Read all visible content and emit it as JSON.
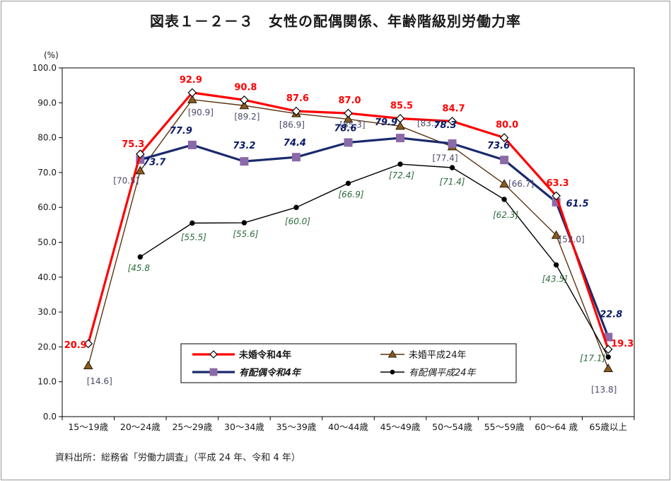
{
  "title": "図表１－２－３　女性の配偶関係、年齢階級別労働力率",
  "source": "資料出所：総務省「労働力調査」（平成 24 年、令和 4 年）",
  "colors": {
    "unmarried_r4": "#ff0000",
    "unmarried_h24": "#5a3310",
    "married_r4": "#1a2a6c",
    "married_h24": "#000000",
    "married_r4_marker": "#8b6aa8",
    "label_unmarried_h24": "#4a4a6a",
    "label_married_r4": "#0a1a66",
    "label_married_h24": "#2a6a3a"
  },
  "chart_data": {
    "type": "line",
    "ylabel": "(%)",
    "ylim": [
      0,
      100
    ],
    "yticks": [
      "0.0",
      "10.0",
      "20.0",
      "30.0",
      "40.0",
      "50.0",
      "60.0",
      "70.0",
      "80.0",
      "90.0",
      "100.0"
    ],
    "grid": false,
    "legend_position": "bottom-center (inside plot)",
    "categories": [
      "15～19歳",
      "20～24歳",
      "25～29歳",
      "30～34歳",
      "35～39歳",
      "40～44歳",
      "45～49歳",
      "50～54歳",
      "55～59歳",
      "60～64 歳",
      "65歳以上"
    ],
    "series": [
      {
        "name": "未婚令和4年",
        "marker": "diamond-open",
        "values": [
          20.9,
          75.3,
          92.9,
          90.8,
          87.6,
          87.0,
          85.5,
          84.7,
          80.0,
          63.3,
          19.3
        ],
        "labels": [
          "20.9",
          "75.3",
          "92.9",
          "90.8",
          "87.6",
          "87.0",
          "85.5",
          "84.7",
          "80.0",
          "63.3",
          "19.3"
        ]
      },
      {
        "name": "未婚平成24年",
        "marker": "triangle",
        "values": [
          14.6,
          70.5,
          90.9,
          89.2,
          86.9,
          85.3,
          83.3,
          77.4,
          66.7,
          52.0,
          13.8
        ],
        "labels": [
          "[14.6]",
          "[70.5]",
          "[90.9]",
          "[89.2]",
          "[86.9]",
          "[85.3]",
          "[83.3]",
          "[77.4]",
          "[66.7]",
          "[52.0]",
          "[13.8]"
        ]
      },
      {
        "name": "有配偶令和4年",
        "marker": "square",
        "values": [
          null,
          73.7,
          77.9,
          73.2,
          74.4,
          78.6,
          79.9,
          78.3,
          73.6,
          61.5,
          22.8
        ],
        "labels": [
          "",
          "73.7",
          "77.9",
          "73.2",
          "74.4",
          "78.6",
          "79.9",
          "78.3",
          "73.6",
          "61.5",
          "22.8"
        ]
      },
      {
        "name": "有配偶平成24年",
        "marker": "dot",
        "values": [
          null,
          45.8,
          55.5,
          55.6,
          60.0,
          66.9,
          72.4,
          71.4,
          62.3,
          43.5,
          17.1
        ],
        "labels": [
          "",
          "[45.8",
          "[55.5]",
          "[55.6]",
          "[60.0]",
          "[66.9]",
          "[72.4]",
          "[71.4]",
          "[62.3]",
          "[43.5]",
          "[17.1]"
        ]
      }
    ]
  }
}
